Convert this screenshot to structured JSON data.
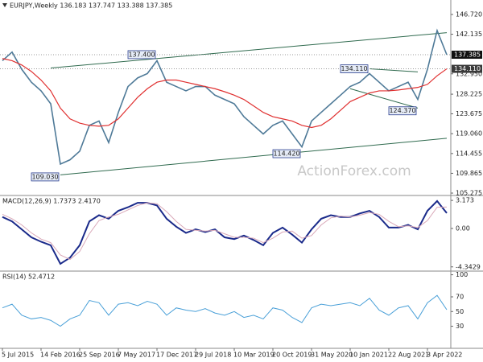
{
  "chart_data": [
    {
      "type": "line",
      "title": "EURJPY,Weekly  136.183 137.747 133.388 137.385",
      "watermark": "ActionForex.com",
      "ylim": [
        104.72,
        150.08
      ],
      "yticks": [
        {
          "value": 146.72,
          "label": "146.720"
        },
        142.135,
        {
          "value": 132.95,
          "label": "132.950"
        },
        128.225,
        123.675,
        {
          "value": 119.06,
          "label": "119.060"
        },
        114.455,
        109.865,
        105.275
      ],
      "price_tags": [
        {
          "value": 137.385,
          "label": "137.385",
          "color": "#111111"
        },
        {
          "value": 134.11,
          "label": "134.110",
          "color": "#3a3a3a"
        }
      ],
      "series": [
        {
          "color": "#4f7a98",
          "values": [
            136,
            138,
            134,
            131,
            129,
            126,
            112,
            113,
            115,
            121,
            122,
            117,
            124,
            130,
            132,
            133,
            136,
            131,
            130,
            129,
            130,
            130,
            128,
            127,
            126,
            123,
            121,
            119,
            121,
            122,
            119,
            116,
            122,
            124,
            126,
            128,
            130,
            131,
            133,
            131,
            129,
            130,
            131,
            127,
            134,
            143,
            137.385
          ]
        },
        {
          "color": "#e03030",
          "values": [
            136.5,
            136,
            135,
            133.5,
            131.5,
            129,
            125,
            122.5,
            121.5,
            121,
            120.8,
            121,
            122.5,
            125,
            127.5,
            129.5,
            131,
            131.5,
            131.5,
            131,
            130.5,
            130,
            129.5,
            128.8,
            128,
            127,
            125.5,
            124,
            123,
            122.5,
            122,
            121,
            120.5,
            121,
            122.5,
            124.5,
            126.5,
            127.5,
            128.5,
            129,
            129,
            129.2,
            129.5,
            129.8,
            130.5,
            132.5,
            134.11
          ]
        }
      ],
      "trendline_color": "#2f6a4e",
      "trendlines": [
        {
          "from": [
            5,
            134.3
          ],
          "to": [
            46,
            142.5
          ]
        },
        {
          "from": [
            6,
            109.5
          ],
          "to": [
            46,
            118
          ]
        },
        {
          "from": [
            38,
            134.11
          ],
          "to": [
            43,
            133.4
          ]
        },
        {
          "from": [
            36,
            129.5
          ],
          "to": [
            43,
            125
          ]
        }
      ],
      "annotations": [
        {
          "label": "137.400",
          "value": 137.4,
          "at": 16
        },
        {
          "label": "109.030",
          "value": 109.03,
          "at": 6
        },
        {
          "label": "134.110",
          "value": 134.11,
          "at": 38
        },
        {
          "label": "114.420",
          "value": 114.42,
          "at": 31
        },
        {
          "label": "124.370",
          "value": 124.37,
          "at": 43
        }
      ]
    },
    {
      "type": "line",
      "title": "MACD(12,26,9) 1.7373 2.4170",
      "ylim": [
        -4.82,
        3.73
      ],
      "yticks": [
        3.173,
        {
          "value": 0,
          "label": "0.00"
        },
        -4.3429
      ],
      "series": [
        {
          "color": "#1a2a8a",
          "width": 2,
          "values": [
            1.3,
            0.8,
            -0.1,
            -1,
            -1.5,
            -1.9,
            -4,
            -3.3,
            -1.9,
            0.8,
            1.5,
            1.1,
            2,
            2.4,
            2.9,
            2.9,
            2.6,
            1.1,
            0.2,
            -0.5,
            -0.1,
            -0.4,
            -0.1,
            -1,
            -1.2,
            -0.8,
            -1.3,
            -1.9,
            -0.5,
            0.1,
            -0.7,
            -1.6,
            -0.1,
            1.1,
            1.5,
            1.3,
            1.3,
            1.7,
            2,
            1.3,
            0.1,
            0.1,
            0.4,
            -0.1,
            2,
            3.1,
            1.7373
          ]
        },
        {
          "color": "#d9a8b8",
          "width": 1,
          "values": [
            1.6,
            1.1,
            0.4,
            -0.5,
            -1.2,
            -1.6,
            -3.0,
            -3.5,
            -2.6,
            -0.6,
            0.9,
            1.3,
            1.6,
            2.1,
            2.6,
            2.9,
            2.8,
            1.9,
            0.8,
            -0.1,
            -0.2,
            -0.3,
            -0.2,
            -0.6,
            -1.0,
            -1.0,
            -1.1,
            -1.6,
            -1.1,
            -0.4,
            -0.3,
            -1.1,
            -0.8,
            0.4,
            1.2,
            1.4,
            1.3,
            1.5,
            1.8,
            1.6,
            0.8,
            0.2,
            0.3,
            0.1,
            0.9,
            2.4,
            2.417
          ]
        }
      ]
    },
    {
      "type": "line",
      "title": "RSI(14) 52.4712",
      "ylim": [
        0,
        105
      ],
      "yticks": [
        100,
        70,
        50,
        30
      ],
      "series": [
        {
          "color": "#4aa0d8",
          "width": 1,
          "values": [
            55,
            60,
            45,
            40,
            42,
            38,
            30,
            40,
            45,
            65,
            62,
            45,
            60,
            62,
            58,
            64,
            60,
            45,
            55,
            52,
            50,
            54,
            48,
            45,
            50,
            42,
            45,
            40,
            55,
            52,
            42,
            35,
            55,
            60,
            58,
            60,
            62,
            58,
            68,
            52,
            45,
            55,
            58,
            40,
            62,
            72,
            52.4712
          ]
        }
      ],
      "categories": [
        "5 Jul 2015",
        null,
        null,
        null,
        "14 Feb 2016",
        null,
        null,
        null,
        "25 Sep 2016",
        null,
        null,
        null,
        "7 May 2017",
        null,
        null,
        null,
        "17 Dec 2017",
        null,
        null,
        null,
        "29 Jul 2018",
        null,
        null,
        null,
        "10 Mar 2019",
        null,
        null,
        null,
        "20 Oct 2019",
        null,
        null,
        null,
        "31 May 2020",
        null,
        null,
        null,
        "10 Jan 2021",
        null,
        null,
        null,
        "22 Aug 2021",
        null,
        null,
        null,
        "3 Apr 2022",
        null,
        null
      ]
    }
  ]
}
